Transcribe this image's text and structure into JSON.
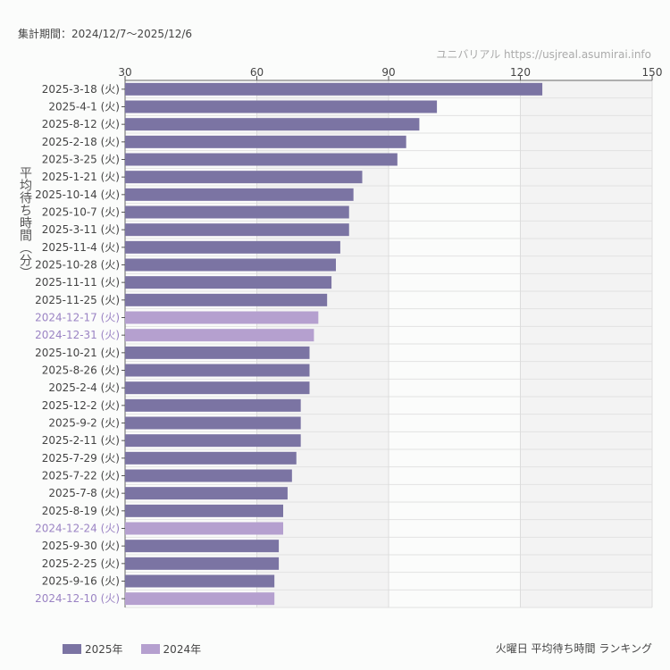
{
  "header": {
    "period": "集計期間：2024/12/7〜2025/12/6",
    "watermark": "ユニバリアル  https://usjreal.asumirai.info"
  },
  "footer": {
    "caption": "火曜日 平均待ち時間 ランキング"
  },
  "colors": {
    "2025": "#7b74a3",
    "2024": "#b5a0cf",
    "label2024": "#9b84c4",
    "band": "#f3f3f3",
    "grid": "#e2e2e2"
  },
  "chart_data": {
    "type": "bar",
    "orientation": "horizontal",
    "ylabel": "平均待ち時間（分）",
    "xlim": [
      30,
      150
    ],
    "xticks": [
      "30",
      "60",
      "90",
      "120",
      "150"
    ],
    "grid": true,
    "legend_placement": "bottom-left",
    "legend": [
      {
        "name": "2025年",
        "key": "2025"
      },
      {
        "name": "2024年",
        "key": "2024"
      }
    ],
    "categories": [
      "2025-3-18 (火)",
      "2025-4-1 (火)",
      "2025-8-12 (火)",
      "2025-2-18 (火)",
      "2025-3-25 (火)",
      "2025-1-21 (火)",
      "2025-10-14 (火)",
      "2025-10-7 (火)",
      "2025-3-11 (火)",
      "2025-11-4 (火)",
      "2025-10-28 (火)",
      "2025-11-11 (火)",
      "2025-11-25 (火)",
      "2024-12-17 (火)",
      "2024-12-31 (火)",
      "2025-10-21 (火)",
      "2025-8-26 (火)",
      "2025-2-4 (火)",
      "2025-12-2 (火)",
      "2025-9-2 (火)",
      "2025-2-11 (火)",
      "2025-7-29 (火)",
      "2025-7-22 (火)",
      "2025-7-8 (火)",
      "2025-8-19 (火)",
      "2024-12-24 (火)",
      "2025-9-30 (火)",
      "2025-2-25 (火)",
      "2025-9-16 (火)",
      "2024-12-10 (火)"
    ],
    "values": [
      125,
      101,
      97,
      94,
      92,
      84,
      82,
      81,
      81,
      79,
      78,
      77,
      76,
      74,
      73,
      72,
      72,
      72,
      70,
      70,
      70,
      69,
      68,
      67,
      66,
      66,
      65,
      65,
      64,
      64
    ],
    "series_key": [
      "2025",
      "2025",
      "2025",
      "2025",
      "2025",
      "2025",
      "2025",
      "2025",
      "2025",
      "2025",
      "2025",
      "2025",
      "2025",
      "2024",
      "2024",
      "2025",
      "2025",
      "2025",
      "2025",
      "2025",
      "2025",
      "2025",
      "2025",
      "2025",
      "2025",
      "2024",
      "2025",
      "2025",
      "2025",
      "2024"
    ]
  }
}
